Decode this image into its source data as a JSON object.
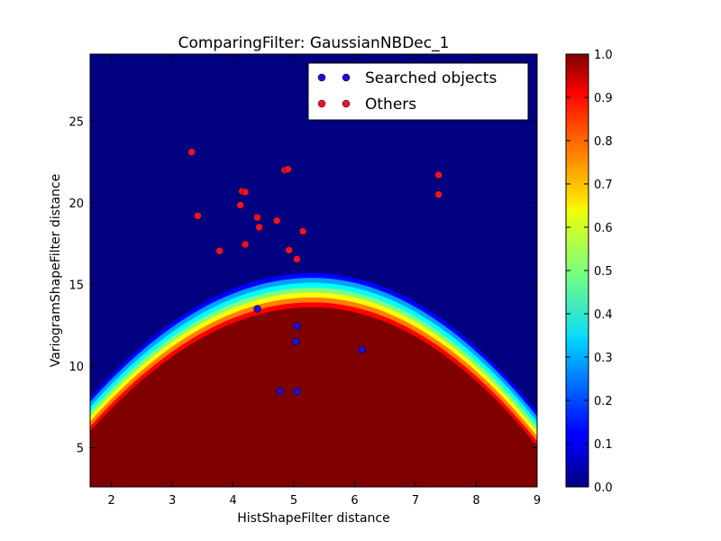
{
  "chart_data": {
    "type": "scatter",
    "title": "ComparingFilter: GaussianNBDec_1",
    "xlabel": "HistShapeFilter distance",
    "ylabel": "VariogramShapeFilter distance",
    "xlim": [
      1.65,
      9.0
    ],
    "ylim": [
      2.6,
      29.1
    ],
    "xticks": [
      "2",
      "3",
      "4",
      "5",
      "6",
      "7",
      "8",
      "9"
    ],
    "yticks": [
      "5",
      "10",
      "15",
      "20",
      "25"
    ],
    "grid": false,
    "legend_position": "top-right",
    "background": {
      "type": "heatmap",
      "description_free": true,
      "colormap": "jet",
      "boundary_peak_x": 5.3,
      "boundary_peak_y": 14.8,
      "boundary_left_y_at_xmin": 7.2,
      "boundary_right_y_at_xmax": 6.3
    },
    "colorbar": {
      "ticks": [
        "0.0",
        "0.1",
        "0.2",
        "0.3",
        "0.4",
        "0.5",
        "0.6",
        "0.7",
        "0.8",
        "0.9",
        "1.0"
      ],
      "min": 0.0,
      "max": 1.0
    },
    "series": [
      {
        "name": "Searched objects",
        "color": "#1f0fd8",
        "points": [
          [
            4.4,
            13.5
          ],
          [
            5.05,
            12.45
          ],
          [
            5.03,
            11.5
          ],
          [
            6.12,
            11.0
          ],
          [
            4.77,
            8.45
          ],
          [
            5.05,
            8.45
          ]
        ]
      },
      {
        "name": "Others",
        "color": "#ee1030",
        "points": [
          [
            3.32,
            23.1
          ],
          [
            4.85,
            22.0
          ],
          [
            4.9,
            22.05
          ],
          [
            7.38,
            21.7
          ],
          [
            4.15,
            20.7
          ],
          [
            4.2,
            20.65
          ],
          [
            7.38,
            20.5
          ],
          [
            4.12,
            19.85
          ],
          [
            3.42,
            19.2
          ],
          [
            4.4,
            19.1
          ],
          [
            4.72,
            18.9
          ],
          [
            4.43,
            18.5
          ],
          [
            5.15,
            18.25
          ],
          [
            4.2,
            17.45
          ],
          [
            3.78,
            17.05
          ],
          [
            4.92,
            17.1
          ],
          [
            5.05,
            16.55
          ]
        ]
      }
    ]
  }
}
